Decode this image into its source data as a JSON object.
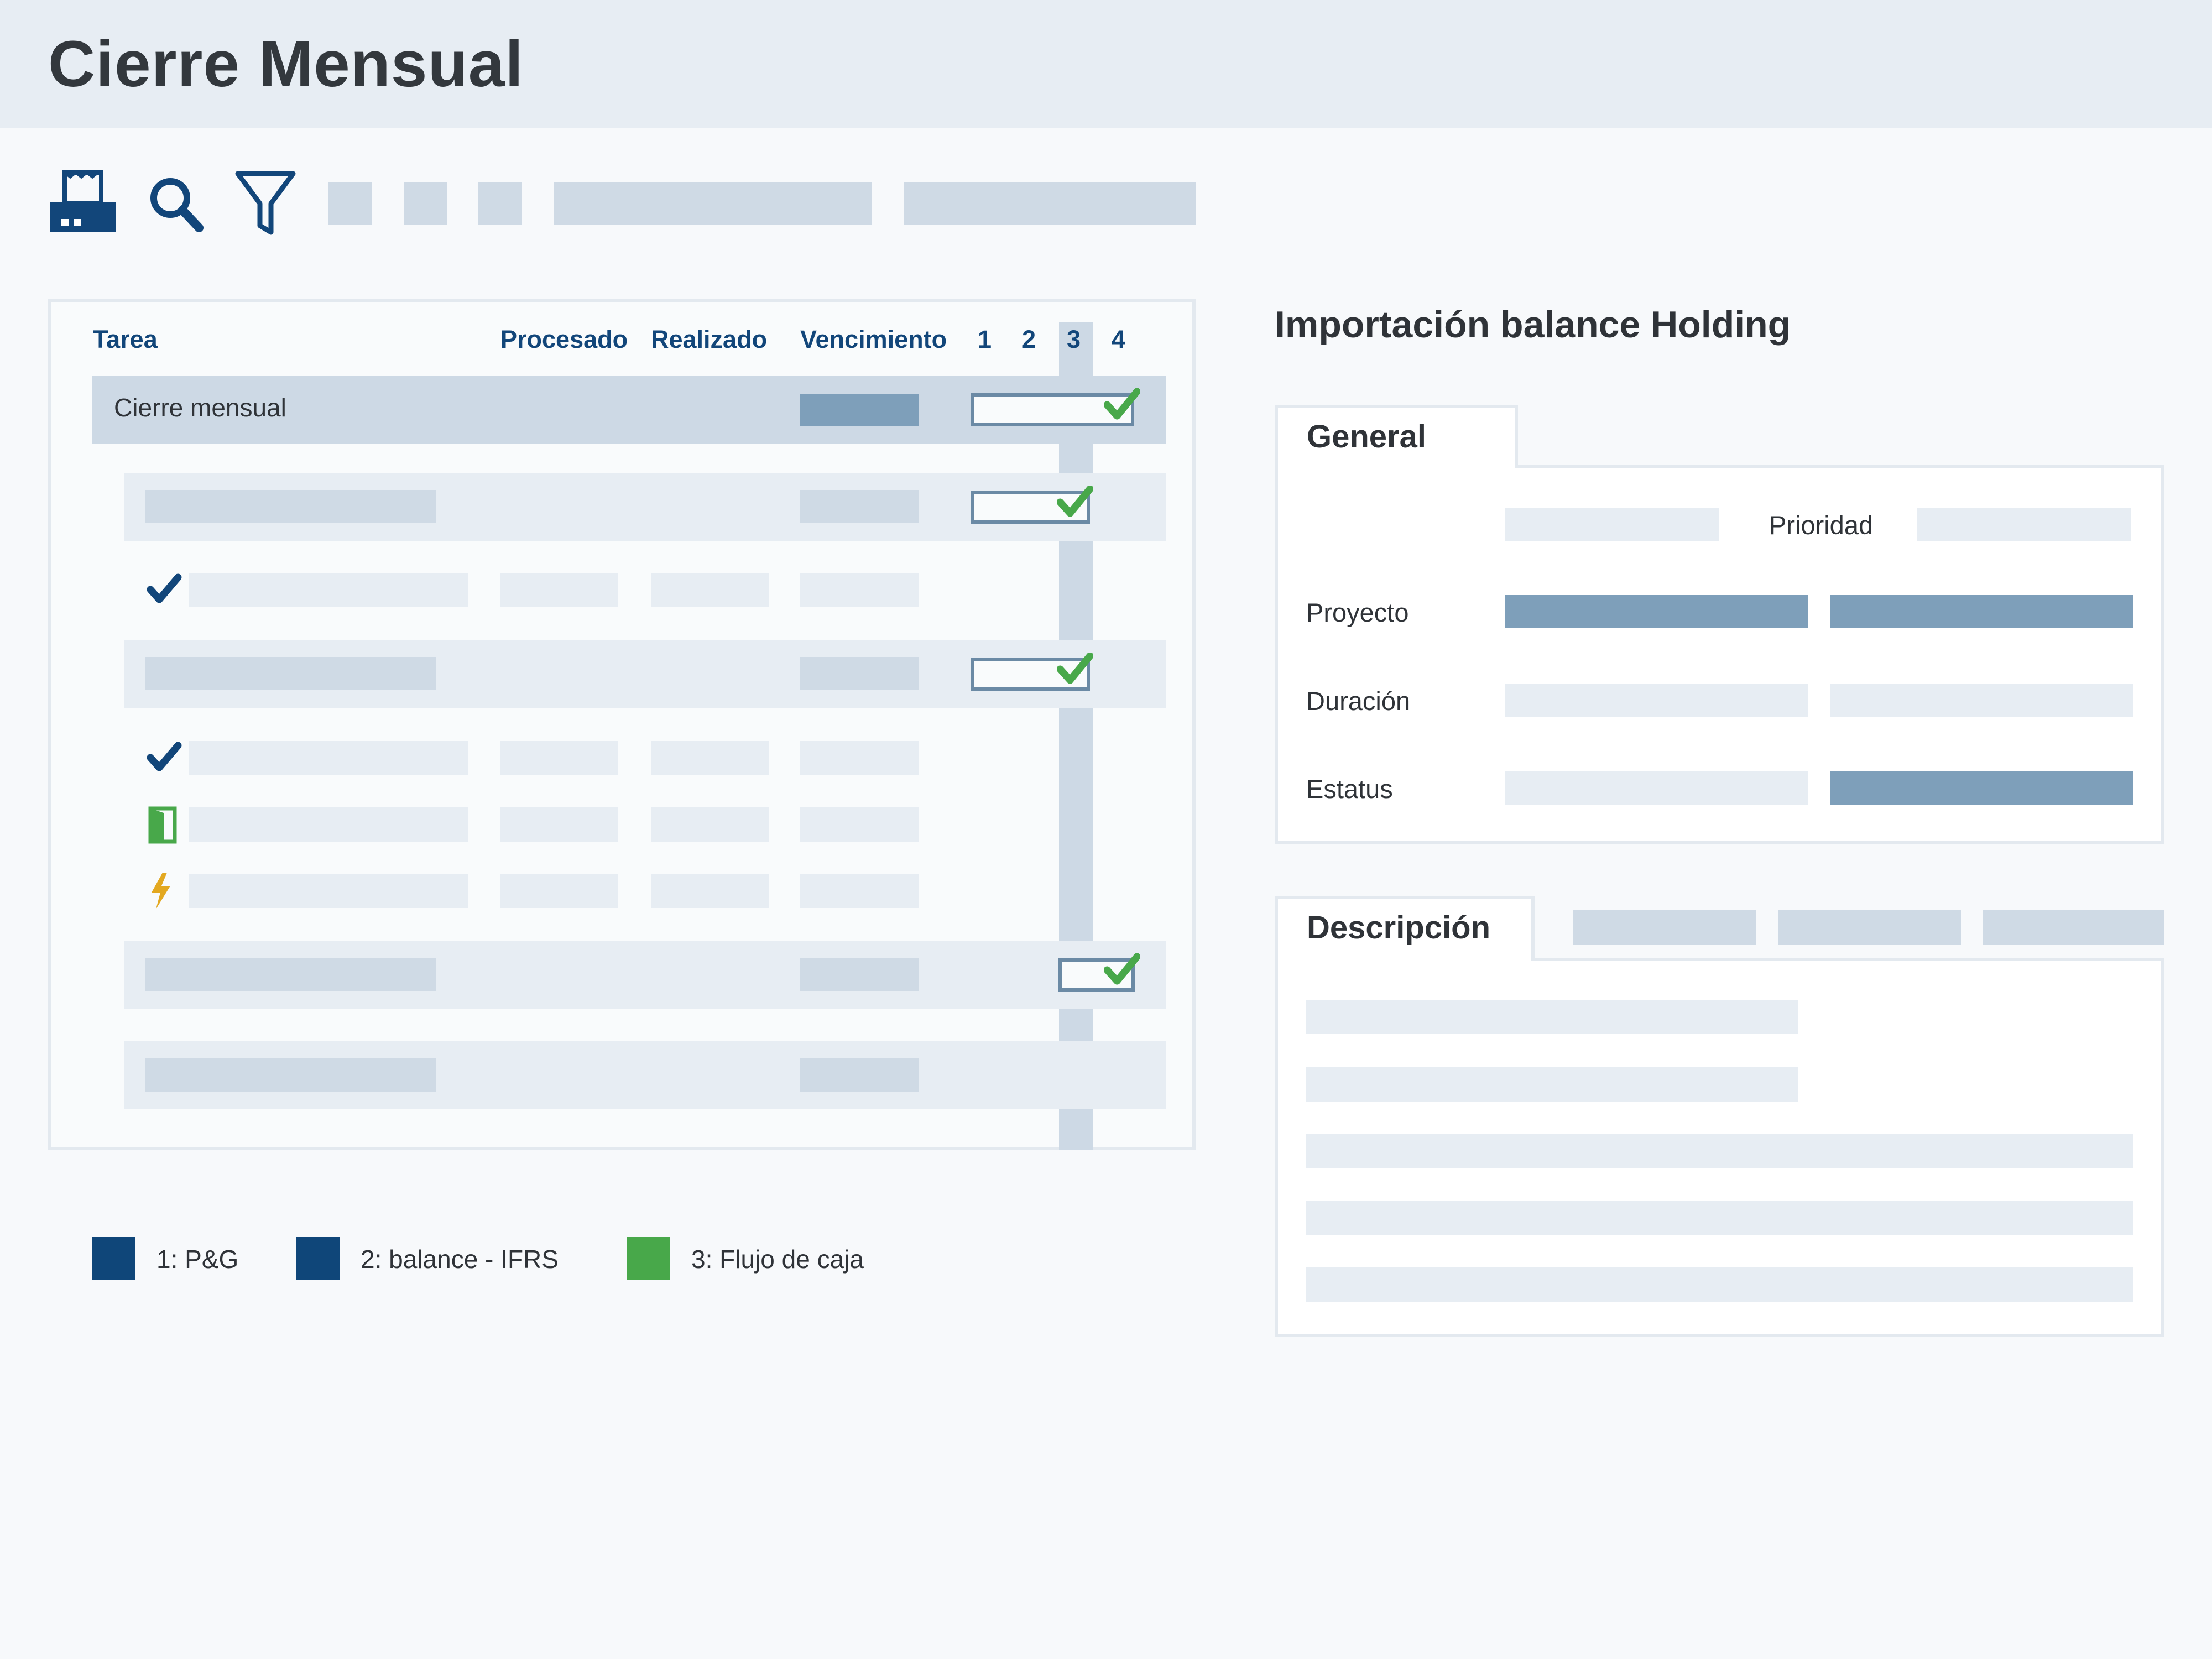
{
  "header": {
    "title": "Cierre Mensual"
  },
  "toolbar": {
    "icons": [
      "print-icon",
      "search-icon",
      "filter-icon"
    ]
  },
  "task_table": {
    "columns": {
      "task": "Tarea",
      "processed": "Procesado",
      "done": "Realizado",
      "due": "Vencimiento",
      "p1": "1",
      "p2": "2",
      "p3": "3",
      "p4": "4"
    },
    "highlighted_period": "3",
    "main_row": {
      "label": "Cierre mensual",
      "completed": true
    },
    "row_status_icons": [
      "check-icon",
      "check-icon",
      "door-open-icon",
      "lightning-icon"
    ]
  },
  "legend": [
    {
      "label": "1: P&G",
      "color": "#0f4679"
    },
    {
      "label": "2: balance - IFRS",
      "color": "#0f4679"
    },
    {
      "label": "3: Flujo de caja",
      "color": "#48a84a"
    }
  ],
  "detail": {
    "title": "Importación balance Holding",
    "general_tab": "General",
    "fields": {
      "priority": "Prioridad",
      "project": "Proyecto",
      "duration": "Duración",
      "status": "Estatus"
    },
    "description_tab": "Descripción"
  },
  "colors": {
    "accent": "#12467a",
    "check": "#48a84a",
    "warning": "#e3a820",
    "placeholder": "#cfdae5",
    "placeholder_dark": "#7e9fba"
  }
}
